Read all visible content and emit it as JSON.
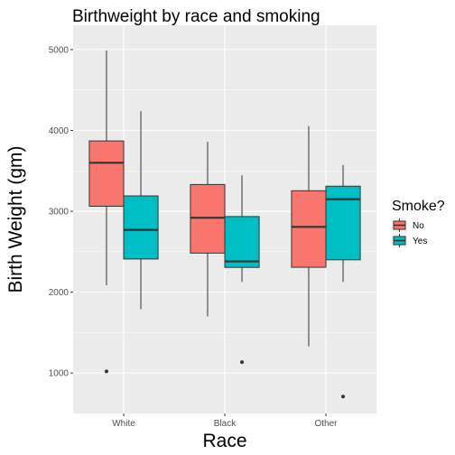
{
  "chart_data": {
    "type": "boxplot",
    "title": "Birthweight by race and smoking",
    "xlabel": "Race",
    "ylabel": "Birth Weight (gm)",
    "categories": [
      "White",
      "Black",
      "Other"
    ],
    "ylim": [
      500,
      5300
    ],
    "yticks": [
      1000,
      2000,
      3000,
      4000,
      5000
    ],
    "grid": true,
    "legend": {
      "title": "Smoke?",
      "position": "right",
      "entries": [
        {
          "label": "No",
          "color": "#f8766d"
        },
        {
          "label": "Yes",
          "color": "#00bfc4"
        }
      ]
    },
    "series": [
      {
        "name": "No",
        "color": "#f8766d",
        "boxes": [
          {
            "category": "White",
            "whisker_low": 2084,
            "q1": 3062,
            "median": 3600,
            "q3": 3870,
            "whisker_high": 4990,
            "outliers": [
              1021
            ]
          },
          {
            "category": "Black",
            "whisker_low": 1701,
            "q1": 2483,
            "median": 2920,
            "q3": 3331,
            "whisker_high": 3860,
            "outliers": []
          },
          {
            "category": "Other",
            "whisker_low": 1330,
            "q1": 2308,
            "median": 2807,
            "q3": 3254,
            "whisker_high": 4054,
            "outliers": []
          }
        ]
      },
      {
        "name": "Yes",
        "color": "#00bfc4",
        "boxes": [
          {
            "category": "White",
            "whisker_low": 1790,
            "q1": 2410,
            "median": 2770,
            "q3": 3190,
            "whisker_high": 4238,
            "outliers": []
          },
          {
            "category": "Black",
            "whisker_low": 2126,
            "q1": 2306,
            "median": 2380,
            "q3": 2935,
            "whisker_high": 3444,
            "outliers": [
              1135
            ]
          },
          {
            "category": "Other",
            "whisker_low": 2126,
            "q1": 2400,
            "median": 3150,
            "q3": 3310,
            "whisker_high": 3572,
            "outliers": [
              709
            ]
          }
        ]
      }
    ]
  }
}
